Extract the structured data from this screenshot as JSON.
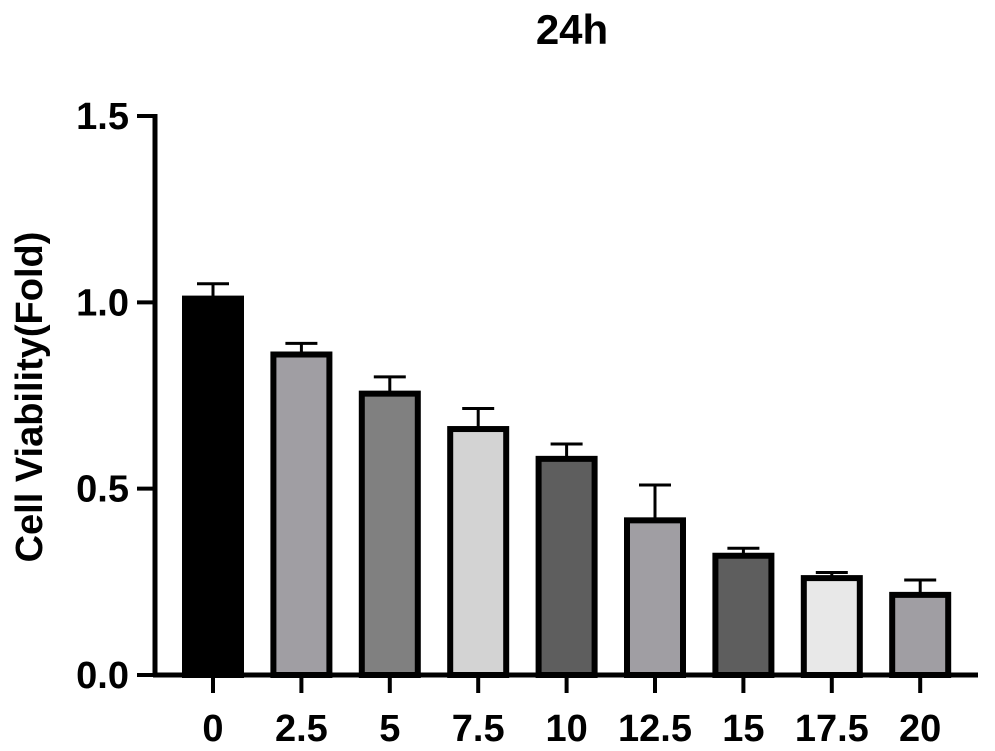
{
  "chart_data": {
    "type": "bar",
    "title": "24h",
    "xlabel": "",
    "ylabel": "Cell Viability(Fold)",
    "categories": [
      "0",
      "2.5",
      "5",
      "7.5",
      "10",
      "12.5",
      "15",
      "17.5",
      "20"
    ],
    "values": [
      1.01,
      0.86,
      0.755,
      0.66,
      0.58,
      0.415,
      0.32,
      0.26,
      0.215
    ],
    "error_upper": [
      0.04,
      0.03,
      0.045,
      0.055,
      0.04,
      0.095,
      0.02,
      0.015,
      0.04
    ],
    "bar_colors": [
      "#000000",
      "#a09ea3",
      "#808080",
      "#d3d3d3",
      "#5e5e5e",
      "#a09ea3",
      "#5e5e5e",
      "#e8e8e8",
      "#a09ea3"
    ],
    "ylim": [
      0,
      1.5
    ],
    "yticks": [
      "0.0",
      "0.5",
      "1.0",
      "1.5"
    ],
    "ytick_values": [
      0,
      0.5,
      1.0,
      1.5
    ],
    "grid": false,
    "legend": "none"
  }
}
